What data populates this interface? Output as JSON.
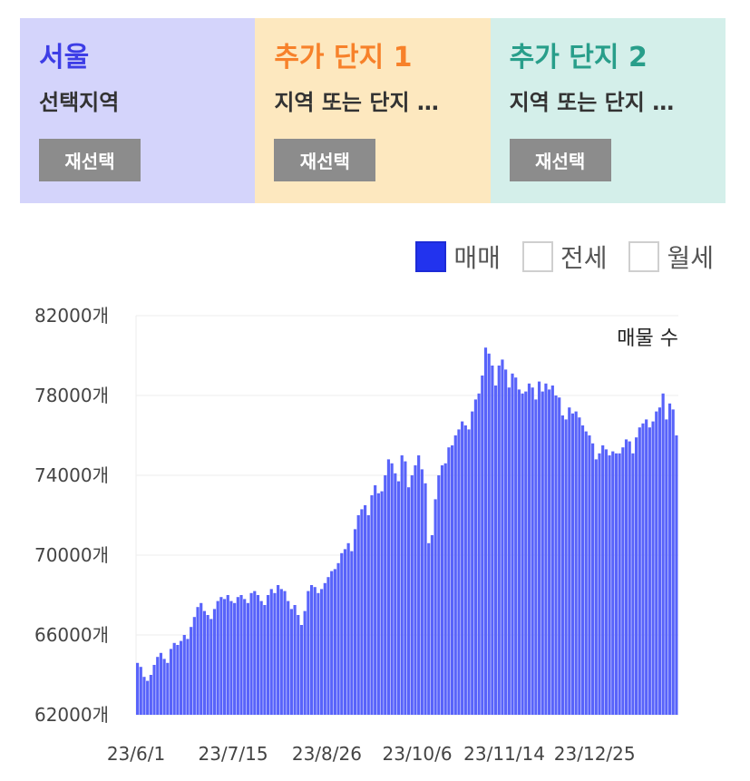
{
  "regions": [
    {
      "name": "서울",
      "sub": "선택지역",
      "button": "재선택",
      "bg": "#d4d4fb",
      "name_color": "#3d3de6"
    },
    {
      "name": "추가 단지 1",
      "sub": "지역 또는 단지 …",
      "button": "재선택",
      "bg": "#fde8bf",
      "name_color": "#f7812a"
    },
    {
      "name": "추가 단지 2",
      "sub": "지역 또는 단지 …",
      "button": "재선택",
      "bg": "#d4efea",
      "name_color": "#289e8a"
    }
  ],
  "legend": [
    {
      "label": "매매",
      "checked": true
    },
    {
      "label": "전세",
      "checked": false
    },
    {
      "label": "월세",
      "checked": false
    }
  ],
  "colors": {
    "bar": "#5863fa",
    "gridline": "#eeeeee"
  },
  "chart_data": {
    "type": "bar",
    "series_label": "매물 수",
    "y_unit": "개",
    "ylim": [
      62000,
      82000
    ],
    "y_ticks": [
      62000,
      66000,
      70000,
      74000,
      78000,
      82000
    ],
    "x_tick_labels": [
      "23/6/1",
      "23/7/15",
      "23/8/26",
      "23/10/6",
      "23/11/14",
      "23/12/25"
    ],
    "x_tick_indices": [
      0,
      29,
      57,
      84,
      110,
      137
    ],
    "grid": true,
    "values": [
      64600,
      64400,
      63900,
      63700,
      64000,
      64500,
      64900,
      65100,
      64800,
      64600,
      65300,
      65600,
      65500,
      65700,
      66000,
      65800,
      66400,
      66900,
      67400,
      67600,
      67200,
      67000,
      66800,
      67300,
      67700,
      67900,
      67800,
      68000,
      67700,
      67600,
      67900,
      68000,
      67800,
      67600,
      68100,
      68200,
      68000,
      67700,
      67500,
      68000,
      68300,
      68100,
      68500,
      68300,
      68200,
      67700,
      67300,
      67500,
      67000,
      66500,
      67200,
      68200,
      68500,
      68400,
      68100,
      68300,
      68600,
      68900,
      69200,
      69300,
      69600,
      70100,
      70300,
      70600,
      70200,
      71300,
      72000,
      72300,
      72500,
      72000,
      73000,
      73500,
      73100,
      73200,
      74000,
      74800,
      74600,
      74100,
      73700,
      75000,
      74700,
      73400,
      74000,
      74500,
      75000,
      74300,
      73600,
      70600,
      71000,
      72800,
      74000,
      74500,
      74600,
      75400,
      75500,
      76000,
      76300,
      76700,
      76500,
      76300,
      77200,
      77800,
      78100,
      79000,
      80400,
      80100,
      79500,
      78500,
      79500,
      79800,
      79300,
      78400,
      79100,
      78900,
      78300,
      78100,
      78200,
      78600,
      78400,
      77800,
      78700,
      78200,
      78600,
      78300,
      78500,
      78000,
      77900,
      77000,
      76800,
      77400,
      77100,
      77200,
      76900,
      76500,
      76200,
      76000,
      75600,
      74800,
      75100,
      75500,
      75300,
      75000,
      75200,
      75100,
      75100,
      75400,
      75800,
      75700,
      75100,
      75900,
      76400,
      76600,
      76800,
      76400,
      76700,
      77200,
      77400,
      78100,
      76800,
      77600,
      77300,
      76000
    ]
  }
}
